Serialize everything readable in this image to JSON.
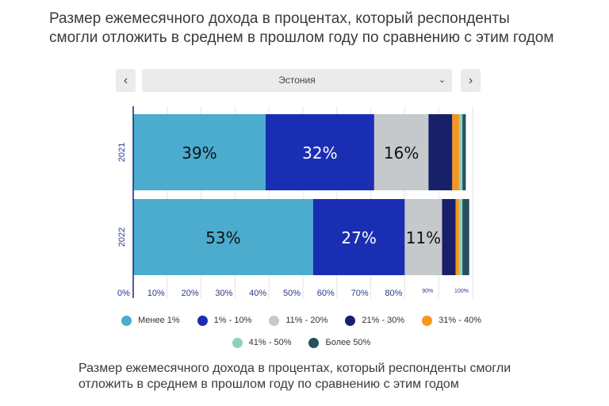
{
  "title": "Размер ежемесячного дохода в процентах, который респонденты\nсмогли отложить в среднем в прошлом году по сравнению с этим годом",
  "navigation": {
    "prev_icon": "‹",
    "next_icon": "›",
    "selected_country": "Эстония",
    "chevron_icon": "⌄"
  },
  "chart_data": {
    "type": "bar",
    "orientation": "horizontal",
    "stacked": true,
    "categories": [
      "2021",
      "2022"
    ],
    "series": [
      {
        "name": "Менее 1%",
        "color": "#4bacce",
        "values": [
          39,
          53
        ],
        "labels": [
          "39%",
          "53%"
        ]
      },
      {
        "name": "1% - 10%",
        "color": "#1a2eb3",
        "values": [
          32,
          27
        ],
        "labels": [
          "32%",
          "27%"
        ]
      },
      {
        "name": "11% - 20%",
        "color": "#c5c9cc",
        "values": [
          16,
          11
        ],
        "labels": [
          "16%",
          "11%"
        ]
      },
      {
        "name": "21% - 30%",
        "color": "#18206a",
        "values": [
          7,
          4
        ],
        "labels": [
          "",
          ""
        ]
      },
      {
        "name": "31% - 40%",
        "color": "#f7951d",
        "values": [
          2,
          1
        ],
        "labels": [
          "",
          ""
        ]
      },
      {
        "name": "41% - 50%",
        "color": "#8fd1bd",
        "values": [
          1,
          1
        ],
        "labels": [
          "",
          ""
        ]
      },
      {
        "name": "Более 50%",
        "color": "#26505f",
        "values": [
          1,
          2
        ],
        "labels": [
          "",
          ""
        ]
      }
    ],
    "xlim": [
      0,
      100
    ],
    "xticks": [
      {
        "value": 0,
        "label": "0%"
      },
      {
        "value": 10,
        "label": "10%"
      },
      {
        "value": 20,
        "label": "20%"
      },
      {
        "value": 30,
        "label": "30%"
      },
      {
        "value": 40,
        "label": "40%"
      },
      {
        "value": 50,
        "label": "50%"
      },
      {
        "value": 60,
        "label": "60%"
      },
      {
        "value": 70,
        "label": "70%"
      },
      {
        "value": 80,
        "label": "80%"
      },
      {
        "value": 90,
        "label": "90%"
      },
      {
        "value": 100,
        "label": "100%"
      }
    ],
    "grid": true,
    "legend_position": "bottom"
  },
  "caption": "Размер ежемесячного дохода в процентах, который респонденты смогли\nотложить в среднем в прошлом году по сравнению с этим годом"
}
